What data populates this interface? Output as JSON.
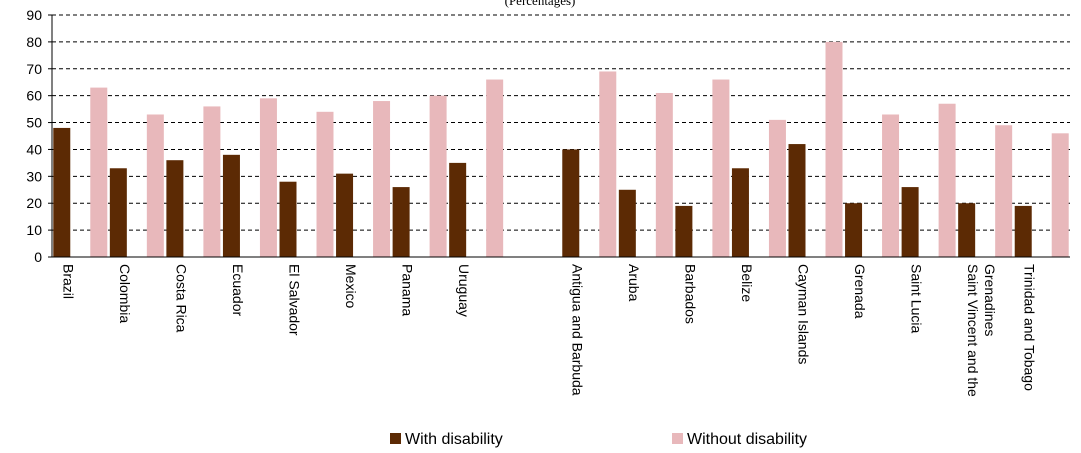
{
  "chart_data": {
    "type": "bar",
    "title": "(Percentages)",
    "categories": [
      "Brazil",
      "Colombia",
      "Costa Rica",
      "Ecuador",
      "El Salvador",
      "Mexico",
      "Panama",
      "Uruguay",
      "",
      "Antigua and Barbuda",
      "Aruba",
      "Barbados",
      "Belize",
      "Cayman Islands",
      "Grenada",
      "Saint Lucia",
      "Saint Vincent and the Grenadines",
      "Trinidad and Tobago"
    ],
    "series": [
      {
        "name": "With disability",
        "color": "#5c2a04",
        "values": [
          48,
          33,
          36,
          38,
          28,
          31,
          26,
          35,
          null,
          40,
          25,
          19,
          33,
          42,
          20,
          26,
          20,
          19
        ]
      },
      {
        "name": "Without disability",
        "color": "#e8b8bb",
        "values": [
          63,
          53,
          56,
          59,
          54,
          58,
          60,
          66,
          null,
          69,
          61,
          66,
          51,
          80,
          53,
          57,
          49,
          46
        ]
      }
    ],
    "ylim": [
      0,
      90
    ],
    "yticks": [
      0,
      10,
      20,
      30,
      40,
      50,
      60,
      70,
      80,
      90
    ],
    "grid": "dashed horizontal",
    "legend_position": "bottom"
  }
}
